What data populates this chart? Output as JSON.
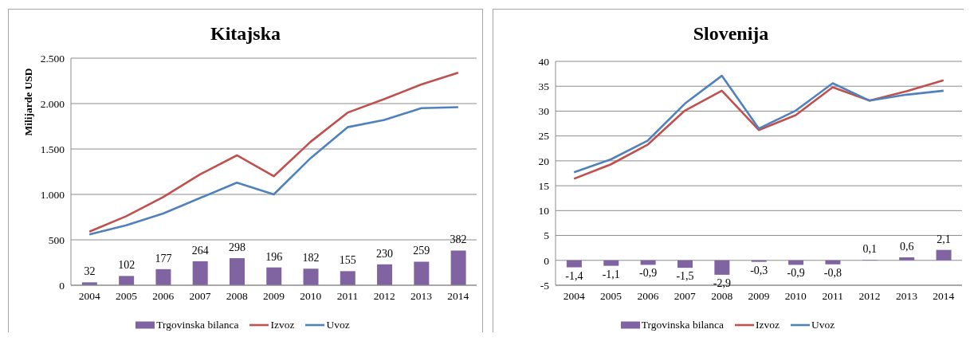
{
  "chart_data": [
    {
      "type": "bar",
      "title": "Kitajska",
      "ylabel": "Milijarde USD",
      "categories": [
        "2004",
        "2005",
        "2006",
        "2007",
        "2008",
        "2009",
        "2010",
        "2011",
        "2012",
        "2013",
        "2014"
      ],
      "series": [
        {
          "name": "Trgovinska bilanca",
          "color": "#8064a2",
          "values": [
            32,
            102,
            177,
            264,
            298,
            196,
            182,
            155,
            230,
            259,
            382
          ],
          "value_labels": [
            "32",
            "102",
            "177",
            "264",
            "298",
            "196",
            "182",
            "155",
            "230",
            "259",
            "382"
          ]
        },
        {
          "name": "Izvoz",
          "type": "line",
          "color": "#c0504d",
          "values": [
            590,
            760,
            970,
            1220,
            1430,
            1200,
            1580,
            1900,
            2050,
            2210,
            2340
          ]
        },
        {
          "name": "Uvoz",
          "type": "line",
          "color": "#4f81bd",
          "values": [
            560,
            660,
            790,
            960,
            1130,
            1000,
            1400,
            1740,
            1820,
            1950,
            1960
          ]
        }
      ],
      "ylim": [
        0,
        2500
      ],
      "yticks": [
        0,
        500,
        {
          "value": 1000,
          "label": "1.000"
        },
        {
          "value": 1500,
          "label": "1.500"
        },
        {
          "value": 2000,
          "label": "2.000"
        },
        {
          "value": 2500,
          "label": "2.500"
        }
      ],
      "grid": "y",
      "legend": "bottom",
      "marker": "none"
    },
    {
      "type": "bar",
      "title": "Slovenija",
      "categories": [
        "2004",
        "2005",
        "2006",
        "2007",
        "2008",
        "2009",
        "2010",
        "2011",
        "2012",
        "2013",
        "2014"
      ],
      "series": [
        {
          "name": "Trgovinska bilanca",
          "color": "#8064a2",
          "values": [
            -1.4,
            -1.1,
            -0.9,
            -1.5,
            -2.9,
            -0.3,
            -0.9,
            -0.8,
            0.1,
            0.6,
            2.1
          ],
          "value_labels": [
            "-1,4",
            "-1,1",
            "-0,9",
            "-1,5",
            "-2,9",
            "-0,3",
            "-0,9",
            "-0,8",
            "0,1",
            "0,6",
            "2,1"
          ]
        },
        {
          "name": "Izvoz",
          "type": "line",
          "color": "#c0504d",
          "values": [
            16.4,
            19.3,
            23.3,
            30.1,
            34.1,
            26.2,
            29.2,
            34.8,
            32.1,
            34.0,
            36.2
          ]
        },
        {
          "name": "Uvoz",
          "type": "line",
          "color": "#4f81bd",
          "values": [
            17.7,
            20.3,
            24.1,
            31.5,
            37.1,
            26.5,
            30.1,
            35.6,
            32.1,
            33.3,
            34.1
          ]
        }
      ],
      "ylim": [
        -5,
        40
      ],
      "yticks": [
        -5,
        0,
        5,
        10,
        15,
        20,
        25,
        30,
        35,
        40
      ],
      "grid": "y",
      "legend": "bottom",
      "marker": "none"
    }
  ]
}
